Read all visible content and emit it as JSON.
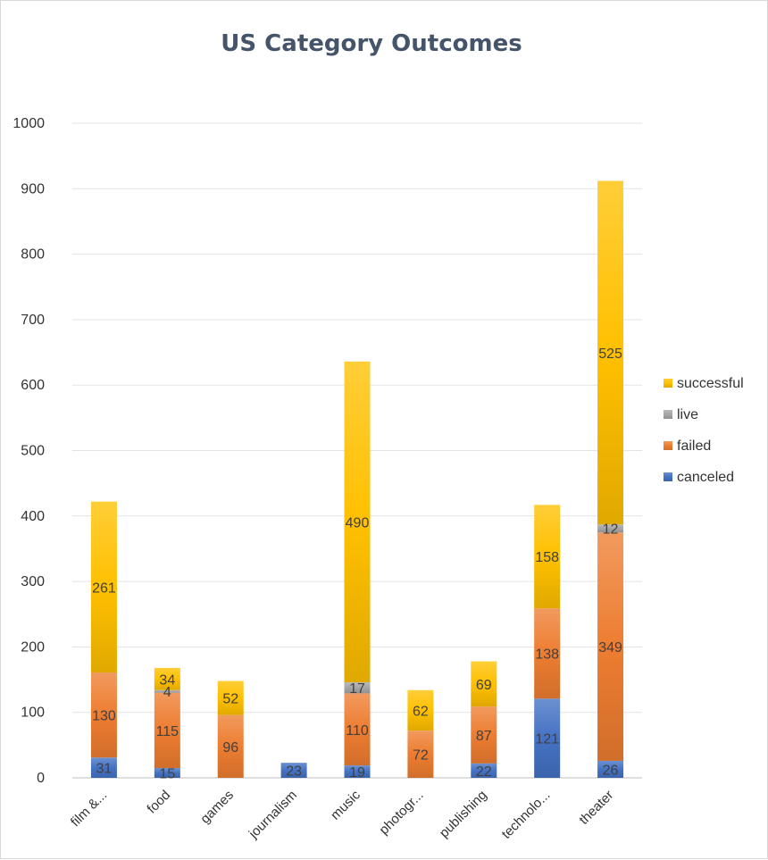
{
  "chart_data": {
    "type": "bar",
    "stacked": true,
    "title": "US Category Outcomes",
    "xlabel": "",
    "ylabel": "",
    "ylim": [
      0,
      1000
    ],
    "yticks": [
      0,
      100,
      200,
      300,
      400,
      500,
      600,
      700,
      800,
      900,
      1000
    ],
    "grid": true,
    "legend_position": "right",
    "categories": [
      "film &...",
      "food",
      "games",
      "journalism",
      "music",
      "photogr...",
      "publishing",
      "technolo...",
      "theater"
    ],
    "series": [
      {
        "name": "canceled",
        "color": "#4472c4",
        "values": [
          31,
          15,
          0,
          23,
          19,
          0,
          22,
          121,
          26
        ]
      },
      {
        "name": "failed",
        "color": "#ed7d31",
        "values": [
          130,
          115,
          96,
          0,
          110,
          72,
          87,
          138,
          349
        ]
      },
      {
        "name": "live",
        "color": "#a5a5a5",
        "values": [
          0,
          4,
          0,
          0,
          17,
          0,
          0,
          0,
          12
        ]
      },
      {
        "name": "successful",
        "color": "#ffc000",
        "values": [
          261,
          34,
          52,
          0,
          490,
          62,
          69,
          158,
          525
        ]
      }
    ]
  }
}
